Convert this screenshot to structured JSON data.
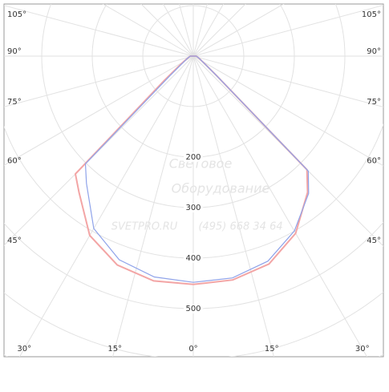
{
  "chart_data": {
    "type": "polar",
    "rlim": [
      0,
      700
    ],
    "rticks": [
      200,
      300,
      400,
      500
    ],
    "angle_ticks": [
      {
        "value": -105,
        "label": "105°"
      },
      {
        "value": -90,
        "label": "90°"
      },
      {
        "value": -75,
        "label": "75°"
      },
      {
        "value": -60,
        "label": "60°"
      },
      {
        "value": -45,
        "label": "45°"
      },
      {
        "value": -30,
        "label": "30°"
      },
      {
        "value": -15,
        "label": "15°"
      },
      {
        "value": 0,
        "label": "0°"
      },
      {
        "value": 15,
        "label": "15°"
      },
      {
        "value": 30,
        "label": "30°"
      },
      {
        "value": 45,
        "label": "45°"
      },
      {
        "value": 60,
        "label": "60°"
      },
      {
        "value": 75,
        "label": "75°"
      },
      {
        "value": 90,
        "label": "90°"
      },
      {
        "value": 105,
        "label": "105°"
      }
    ],
    "x": [
      -90,
      -80,
      -70,
      -60,
      -55,
      -50,
      -45,
      -40,
      -30,
      -20,
      -10,
      0,
      10,
      20,
      30,
      40,
      45,
      50,
      55,
      60,
      70,
      80,
      90
    ],
    "series": [
      {
        "color": "#f3a5a5",
        "values": [
          6,
          8,
          12,
          22,
          35,
          75,
          330,
          352,
          410,
          440,
          452,
          452,
          450,
          438,
          405,
          352,
          318,
          60,
          30,
          20,
          12,
          8,
          6
        ]
      },
      {
        "color": "#8fa3ea",
        "values": [
          6,
          8,
          12,
          20,
          30,
          60,
          302,
          329,
          394,
          429,
          444,
          448,
          446,
          432,
          400,
          355,
          322,
          60,
          30,
          20,
          12,
          8,
          6
        ]
      }
    ],
    "watermark": [
      "Световое",
      "Оборудование",
      "SVETPRO.RU",
      "(495) 668 34 64"
    ]
  }
}
